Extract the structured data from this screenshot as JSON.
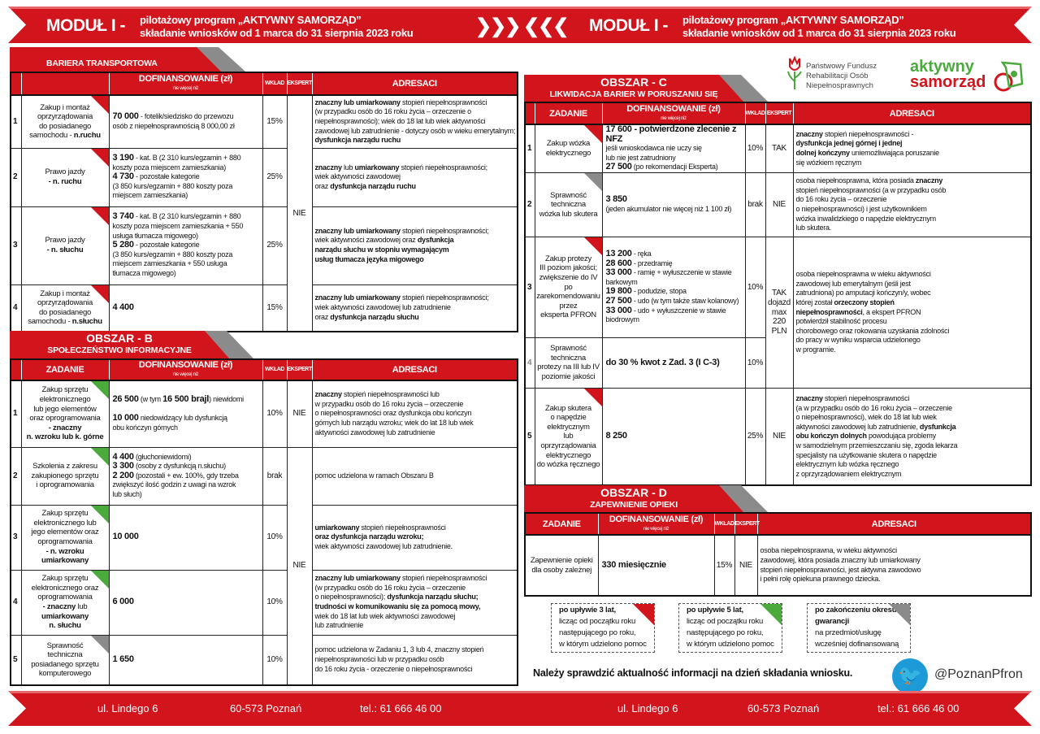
{
  "header": {
    "module": "MODUŁ I -",
    "line1": "pilotażowy program „AKTYWNY SAMORZĄD”",
    "line2": "składanie wniosków od 1 marca do 31 sierpnia 2023 roku",
    "arrows": "❯❯❯ ❮❮❮"
  },
  "logos": {
    "pfron": [
      "Państwowy Fundusz",
      "Rehabilitacji Osób",
      "Niepełnosprawnych"
    ],
    "aktywny": "aktywny",
    "samorzad": "samorząd"
  },
  "colors": {
    "red": "#d2141c",
    "green": "#4aaa3c",
    "gray": "#8b8b8b"
  },
  "headers": {
    "zadanie": "ZADANIE",
    "dofin": "DOFINANSOWANIE (zł)",
    "dofin_sub": "nie więcej niż",
    "wklad": "WKŁAD",
    "ekspert": "EKSPERT",
    "adresaci": "ADRESACI"
  },
  "sections": {
    "bariera": {
      "title": "BARIERA TRANSPORTOWA",
      "subtitle": "",
      "show_zadanie_header": false,
      "rows": [
        {
          "num": "1",
          "marker": "red",
          "zadanie": [
            "Zakup i montaż\noprzyrządowania\ndo posiadanego\nsamochodu - ",
            [
              "n.ruchu"
            ]
          ],
          "dofin": [
            [
              "70 000"
            ],
            " - fotelik/siedzisko do przewozu\nosób z niepełnosprawnością 8 000,00 zł"
          ],
          "wklad": "15%",
          "ekspert": "NIE",
          "ekspert_span": 4,
          "adresaci": [
            [
              "znaczny lub umiarkowany"
            ],
            " stopień niepełnosprawności\n(w przypadku osób do 16 roku życia – orzeczenie o niepełnosprawności); wiek do 18 lat lub wiek aktywności zawodowej lub zatrudnienie - dotyczy osób w wieku emerytalnym; ",
            [
              "dysfunkcja narządu ruchu"
            ]
          ]
        },
        {
          "num": "2",
          "marker": "red",
          "zadanie": [
            "Prawo jazdy\n",
            [
              "- n. ruchu"
            ]
          ],
          "dofin": [
            [
              "3 190"
            ],
            " - kat. B (2 310 kurs/egzamin + 880\nkoszty poza miejscem zamieszkania)\n",
            [
              "4 730"
            ],
            " - pozostałe kategorie\n(3 850 kurs/egzamin + 880 koszty poza\nmiejscem zamieszkania)"
          ],
          "wklad": "25%",
          "adresaci": [
            [
              "znaczny"
            ],
            " lub ",
            [
              "umiarkowany"
            ],
            " stopień niepełnosprawności;\nwiek aktywności zawodowej\noraz ",
            [
              "dysfunkcja narządu ruchu"
            ]
          ]
        },
        {
          "num": "3",
          "marker": "red",
          "zadanie": [
            "Prawo jazdy\n",
            [
              "- n. słuchu"
            ]
          ],
          "dofin": [
            [
              "3 740"
            ],
            " - kat. B (2 310 kurs/egzamin + 880\nkoszty poza miejscem zamieszkania + 550\nusługa tłumacza migowego)\n",
            [
              "5 280"
            ],
            " - pozostałe kategorie\n(3 850 kurs/egzamin + 880 koszty poza\nmiejscem zamieszkania + 550 usługa\ntłumacza migowego)"
          ],
          "wklad": "25%",
          "adresaci": [
            [
              "znaczny lub umiarkowany"
            ],
            " stopień niepełnosprawności;\nwiek aktywności zawodowej oraz ",
            [
              "dysfunkcja\nnarządu słuchu w stopniu wymagającym\nusług tłumacza języka migowego"
            ]
          ]
        },
        {
          "num": "4",
          "marker": "red",
          "zadanie": [
            "Zakup i montaż\noprzyrządowania\ndo posiadanego\nsamochodu - ",
            [
              "n.słuchu"
            ]
          ],
          "dofin": [
            [
              "4 400"
            ]
          ],
          "wklad": "15%",
          "adresaci": [
            [
              "znaczny lub umiarkowany"
            ],
            " stopień niepełnosprawności;\nwiek aktywności zawodowej lub zatrudnienie\noraz ",
            [
              "dysfunkcja narządu słuchu"
            ]
          ]
        }
      ]
    },
    "b": {
      "title": "OBSZAR - B",
      "subtitle": "SPOŁECZEŃSTWO INFORMACYJNE",
      "show_zadanie_header": true,
      "rows": [
        {
          "num": "1",
          "marker": "green",
          "zadanie": [
            "Zakup sprzętu\nelektronicznego\nlub jego elementów\noraz oprogramowania\n",
            [
              "- znaczny\nn. wzroku lub k. górne"
            ]
          ],
          "dofin": [
            [
              "26 500"
            ],
            " (w tym ",
            [
              "16 500 brajl"
            ],
            ") niewidomi\n\n",
            [
              "10 000"
            ],
            " niedowidzący lub dysfunkcją\n           obu kończyn górnych"
          ],
          "wklad": "10%",
          "ekspert": "NIE",
          "ekspert_span": 1,
          "adresaci": [
            [
              "znaczny"
            ],
            " stopień niepełnosprawności lub\nw przypadku osób do 16 roku życia – orzeczenie\no niepełnosprawności oraz dysfunkcja obu kończyn\ngórnych lub narządu wzroku; wiek do lat 18 lub wiek\naktywności zawodowej lub zatrudnienie"
          ]
        },
        {
          "num": "2",
          "marker": "green",
          "zadanie": [
            "Szkolenia z zakresu\nzakupionego sprzętu\ni oprogramowania"
          ],
          "dofin": [
            [
              "4 400"
            ],
            " (głuchoniewidomi)\n",
            [
              "3 300"
            ],
            " (osoby z dysfunkcją n.słuchu)\n",
            [
              "2 200"
            ],
            " (pozostali + ew. 100%, gdy trzeba\nzwiększyć ilość godzin z uwagi na wzrok\nlub słuch)"
          ],
          "wklad": "brak",
          "ekspert": "NIE",
          "ekspert_span": 4,
          "adresaci": [
            "pomoc udzielona w ramach Obszaru B"
          ]
        },
        {
          "num": "3",
          "marker": "green",
          "zadanie": [
            "Zakup sprzętu\nelektronicznego lub\njego elementów oraz\noprogramowania\n",
            [
              "- n. wzroku\numiarkowany"
            ]
          ],
          "dofin": [
            [
              "10 000"
            ]
          ],
          "wklad": "10%",
          "adresaci": [
            [
              "umiarkowany"
            ],
            " stopień niepełnosprawności\n",
            [
              "oraz dysfunkcja narządu wzroku;"
            ],
            "\nwiek aktywności zawodowej lub zatrudnienie."
          ]
        },
        {
          "num": "4",
          "marker": "green",
          "zadanie": [
            "Zakup sprzętu\nelektronicznego oraz\noprogramowania\n",
            [
              "- znaczny"
            ],
            " lub\n",
            [
              "umiarkowany\nn. słuchu"
            ]
          ],
          "dofin": [
            [
              "6 000"
            ]
          ],
          "wklad": "10%",
          "adresaci": [
            [
              "znaczny lub umiarkowany"
            ],
            " stopień niepełnosprawności\n(w przypadku osób do 16 roku życia – orzeczenie\no niepełnosprawności); ",
            [
              "dysfunkcja narządu słuchu;\ntrudności w komunikowaniu się za pomocą mowy,"
            ],
            "\nwiek do 18 lat lub wiek aktywności zawodowej\n lub zatrudnienie"
          ]
        },
        {
          "num": "5",
          "marker": "gray",
          "zadanie": [
            "Sprawność\ntechniczna\nposiadanego sprzętu\nkomputerowego"
          ],
          "dofin": [
            [
              "1 650"
            ]
          ],
          "wklad": "10%",
          "adresaci": [
            "pomoc udzielona w Zadaniu 1, 3 lub 4, znaczny stopień\nniepełnosprawności lub w przypadku osób\ndo 16 roku życia - orzeczenie o niepełnosprawności"
          ]
        }
      ]
    },
    "c": {
      "title": "OBSZAR - C",
      "subtitle": "LIKWIDACJA BARIER W PORUSZANIU SIĘ",
      "show_zadanie_header": true,
      "rows": [
        {
          "num": "1",
          "marker": "red",
          "zadanie": [
            "Zakup wózka\nelektrycznego"
          ],
          "dofin": [
            [
              "17 600 - potwierdzone zlecenie z NFZ"
            ],
            "\n              jeśli wnioskodawca nie uczy się\n              lub nie jest zatrudniony\n",
            [
              "27 500"
            ],
            " (po rekomendacji Eksperta)"
          ],
          "wklad": "10%",
          "ekspert": "TAK",
          "ekspert_span": 1,
          "adresaci": [
            [
              "znaczny"
            ],
            " stopień niepełnosprawności -\n",
            [
              "dysfunkcja jednej górnej i jednej\ndolnej kończyny"
            ],
            " uniemożliwiająca poruszanie\nsię wózkiem ręcznym"
          ]
        },
        {
          "num": "2",
          "marker": "gray",
          "zadanie": [
            "Sprawność\ntechniczna\nwózka lub skutera"
          ],
          "dofin": [
            [
              "3 850"
            ],
            "\n(jeden akumulator nie więcej niż 1 100 zł)"
          ],
          "wklad": "brak",
          "ekspert": "NIE",
          "ekspert_span": 1,
          "adresaci": [
            "osoba niepełnosprawna, która posiada ",
            [
              "znaczny"
            ],
            "\nstopień niepełnosprawności (a w przypadku osób\ndo 16 roku życia – orzeczenie\no niepełnosprawności) i jest użytkownikiem\nwózka inwalidzkiego o napędzie elektrycznym\nlub skutera."
          ]
        },
        {
          "num": "3",
          "marker": "red",
          "zadanie": [
            "Zakup protezy\nIII poziom jakości;\nzwiększenie do IV\npo\nzarekomendowaniu\nprzez\neksperta PFRON"
          ],
          "dofin": [
            [
              "13 200"
            ],
            " - ręka\n",
            [
              "28 600"
            ],
            " - przedramię\n",
            [
              "33 000"
            ],
            " - ramię + wyłuszczenie  w stawie\n            barkowym\n",
            [
              "19 800"
            ],
            " - podudzie, stopa\n",
            [
              "27 500"
            ],
            " - udo (w tym także staw kolanowy)\n",
            [
              "33 000"
            ],
            " - udo + wyłuszczenie w stawie\n            biodrowym"
          ],
          "wklad": "10%",
          "ekspert": "TAK\ndojazd\nmax\n220\nPLN",
          "ekspert_span": 2,
          "adresaci": [
            "osoba niepełnosprawna w wieku aktywności\nzawodowej lub emerytalnym (jeśli jest\nzatrudniona) po amputacji kończyn/y, wobec\nktórej został ",
            [
              "orzeczony stopień\nniepełnosprawności"
            ],
            ", a ekspert PFRON\npotwierdził stabilność procesu\nchorobowego oraz rokowania uzyskania zdolności\ndo pracy w wyniku wsparcia udzielonego\nw programie."
          ],
          "adresaci_span": 2
        },
        {
          "num": "4",
          "marker": "",
          "zadanie": [
            "Sprawność\ntechniczna\nprotezy na III lub IV\npoziomie jakości"
          ],
          "dofin": [
            [
              "do 30 % kwot z Zad. 3 (I C-3)"
            ]
          ],
          "wklad": "10%"
        },
        {
          "num": "5",
          "marker": "red",
          "zadanie": [
            "Zakup skutera\no napędzie\nelektrycznym\nlub\noprzyrządowania\nelektrycznego\ndo wózka ręcznego"
          ],
          "dofin": [
            [
              "8 250"
            ]
          ],
          "wklad": "25%",
          "ekspert": "NIE",
          "ekspert_span": 1,
          "adresaci": [
            [
              "znaczny"
            ],
            " stopień niepełnosprawności\n(a w przypadku osób do 16 roku życia – orzeczenie\no niepełnosprawności), wiek do 18 lat lub wiek\naktywności zawodowej lub zatrudnienie, ",
            [
              "dysfunkcja\nobu kończyn dolnych"
            ],
            " powodująca problemy\nw samodzielnym przemieszczaniu się, zgoda lekarza\nspecjalisty na użytkowanie skutera o napędzie\nelektrycznym lub wózka ręcznego\nz oprzyrządowaniem elektrycznym"
          ]
        }
      ]
    },
    "d": {
      "title": "OBSZAR - D",
      "subtitle": "ZAPEWNIENIE OPIEKI",
      "show_zadanie_header": true,
      "rows": [
        {
          "marker": "",
          "zadanie": [
            "Zapewnienie opieki\ndla osoby zależnej"
          ],
          "dofin": [
            [
              "330 miesięcznie"
            ]
          ],
          "wklad": "15%",
          "ekspert": "NIE",
          "ekspert_span": 1,
          "adresaci": [
            "osoba niepełnosprawna, w wieku aktywności\nzawodowej, która posiada znaczny lub umiarkowany\nstopień niepełnosprawności, jest aktywna zawodowo\ni pełni rolę opiekuna prawnego dziecka."
          ]
        }
      ]
    }
  },
  "notes": [
    {
      "marker": "red",
      "bold": "po upływie 3 lat,",
      "text": "licząc od początku roku\nnastępującego po roku,\nw którym udzielono pomoc"
    },
    {
      "marker": "green",
      "bold": "po upływie 5 lat,",
      "text": "licząc od początku roku\nnastępującego po roku,\nw którym udzielono pomoc"
    },
    {
      "marker": "gray",
      "bold": "po zakończeniu okresu\ngwarancji",
      "text": "na przedmiot/usługę\nwcześniej dofinansowaną"
    }
  ],
  "footer_notice": "Należy sprawdzić aktualność informacji na dzień składania wniosku.",
  "twitter_handle": "@PoznanPfron",
  "footer": {
    "street": "ul. Lindego 6",
    "city": "60-573 Poznań",
    "phone": "tel.: 61 666 46 00"
  }
}
